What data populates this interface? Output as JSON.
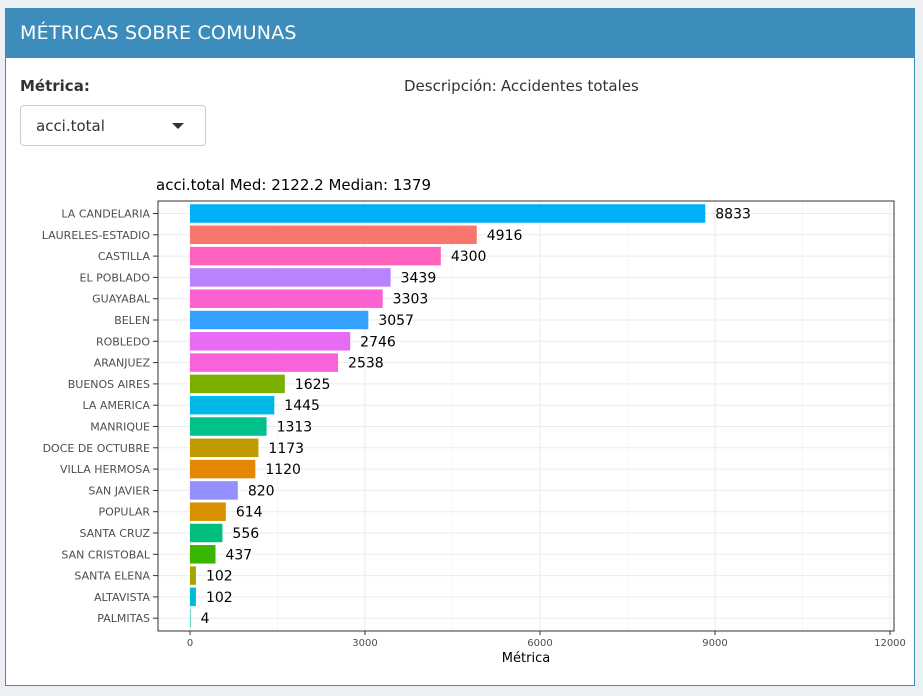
{
  "header": {
    "title": "MÉTRICAS SOBRE COMUNAS"
  },
  "controls": {
    "metric_label": "Métrica:",
    "metric_selected": "acci.total",
    "description_prefix": "Descripción:",
    "description_value": "Accidentes totales"
  },
  "icons": {
    "dropdown": "chevron-down-icon"
  },
  "chart_data": {
    "type": "bar",
    "orientation": "horizontal",
    "title": "acci.total Med: 2122.2 Median: 1379",
    "xlabel": "Métrica",
    "ylabel": "",
    "xlim": [
      0,
      12000
    ],
    "xticks": [
      "0",
      "3000",
      "6000",
      "9000",
      "12000"
    ],
    "grid": true,
    "categories": [
      "LA CANDELARIA",
      "LAURELES-ESTADIO",
      "CASTILLA",
      "EL POBLADO",
      "GUAYABAL",
      "BELEN",
      "ROBLEDO",
      "ARANJUEZ",
      "BUENOS AIRES",
      "LA AMERICA",
      "MANRIQUE",
      "DOCE DE OCTUBRE",
      "VILLA HERMOSA",
      "SAN JAVIER",
      "POPULAR",
      "SANTA CRUZ",
      "SAN CRISTOBAL",
      "SANTA ELENA",
      "ALTAVISTA",
      "PALMITAS"
    ],
    "values": [
      8833,
      4916,
      4300,
      3439,
      3303,
      3057,
      2746,
      2538,
      1625,
      1445,
      1313,
      1173,
      1120,
      820,
      614,
      556,
      437,
      102,
      102,
      4
    ],
    "labels": [
      "8833",
      "4916",
      "4300",
      "3439",
      "3303",
      "3057",
      "2746",
      "2538",
      "1625",
      "1445",
      "1313",
      "1173",
      "1120",
      "820",
      "614",
      "556",
      "437",
      "102",
      "102",
      "4"
    ],
    "colors": [
      "#00B0F6",
      "#F8766D",
      "#FF62BC",
      "#B983FF",
      "#FD61D1",
      "#35A2FF",
      "#E76BF3",
      "#FA62DB",
      "#7CAE00",
      "#00B8E7",
      "#00C08B",
      "#C09B00",
      "#E58700",
      "#9590FF",
      "#D89000",
      "#00BF7D",
      "#39B600",
      "#A3A500",
      "#00BCD8",
      "#00C19F"
    ]
  }
}
